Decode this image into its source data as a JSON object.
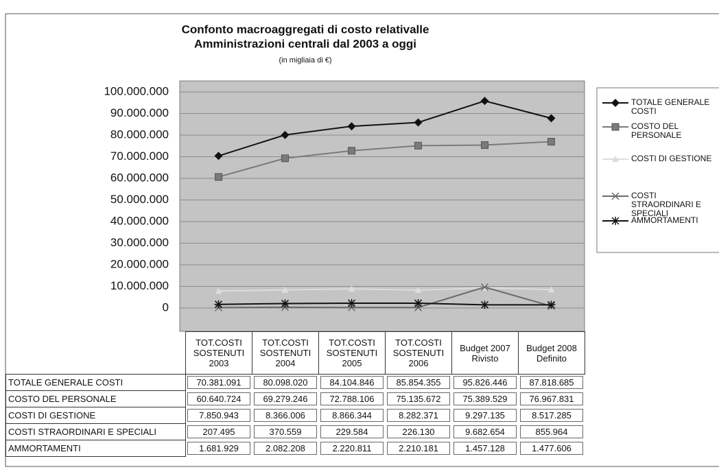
{
  "chart_data": {
    "type": "line",
    "title": [
      "Confonto macroaggregati di costo relativalle",
      "Amministrazioni centrali dal 2003 a oggi"
    ],
    "subtitle": "(in migliaia di €)",
    "categories": [
      "TOT.COSTI SOSTENUTI 2003",
      "TOT.COSTI SOSTENUTI 2004",
      "TOT.COSTI SOSTENUTI 2005",
      "TOT.COSTI SOSTENUTI 2006",
      "Budget 2007 Rivisto",
      "Budget 2008 Definito"
    ],
    "series": [
      {
        "name": "TOTALE GENERALE COSTI",
        "color": "#111111",
        "marker": "diamond",
        "values": [
          70381091,
          80098020,
          84104846,
          85854355,
          95826446,
          87818685
        ],
        "value_labels": [
          "70.381.091",
          "80.098.020",
          "84.104.846",
          "85.854.355",
          "95.826.446",
          "87.818.685"
        ]
      },
      {
        "name": "COSTO DEL PERSONALE",
        "color": "#7a7a7a",
        "marker": "square",
        "values": [
          60640724,
          69279246,
          72788106,
          75135672,
          75389529,
          76967831
        ],
        "value_labels": [
          "60.640.724",
          "69.279.246",
          "72.788.106",
          "75.135.672",
          "75.389.529",
          "76.967.831"
        ]
      },
      {
        "name": "COSTI DI GESTIONE",
        "color": "#dddddd",
        "marker": "triangle",
        "values": [
          7850943,
          8366006,
          8866344,
          8282371,
          9297135,
          8517285
        ],
        "value_labels": [
          "7.850.943",
          "8.366.006",
          "8.866.344",
          "8.282.371",
          "9.297.135",
          "8.517.285"
        ]
      },
      {
        "name": "COSTI STRAORDINARI E SPECIALI",
        "color": "#6a6a6a",
        "marker": "x",
        "values": [
          207495,
          370559,
          229584,
          226130,
          9682654,
          855964
        ],
        "value_labels": [
          "207.495",
          "370.559",
          "229.584",
          "226.130",
          "9.682.654",
          "855.964"
        ]
      },
      {
        "name": "AMMORTAMENTI",
        "color": "#111111",
        "marker": "asterisk",
        "values": [
          1681929,
          2082208,
          2220811,
          2210181,
          1457128,
          1477606
        ],
        "value_labels": [
          "1.681.929",
          "2.082.208",
          "2.220.811",
          "2.210.181",
          "1.457.128",
          "1.477.606"
        ]
      }
    ],
    "ylim": [
      0,
      100000000
    ],
    "yticks": [
      0,
      {
        "value": 10000000,
        "label": "10.000.000"
      },
      {
        "value": 20000000,
        "label": "20.000.000"
      },
      {
        "value": 30000000,
        "label": "30.000.000"
      },
      {
        "value": 40000000,
        "label": "40.000.000"
      },
      {
        "value": 50000000,
        "label": "50.000.000"
      },
      {
        "value": 60000000,
        "label": "60.000.000"
      },
      {
        "value": 70000000,
        "label": "70.000.000"
      },
      {
        "value": 80000000,
        "label": "80.000.000"
      },
      {
        "value": 90000000,
        "label": "90.000.000"
      },
      {
        "value": 100000000,
        "label": "100.000.000"
      }
    ],
    "grid": true,
    "legend": "right"
  }
}
